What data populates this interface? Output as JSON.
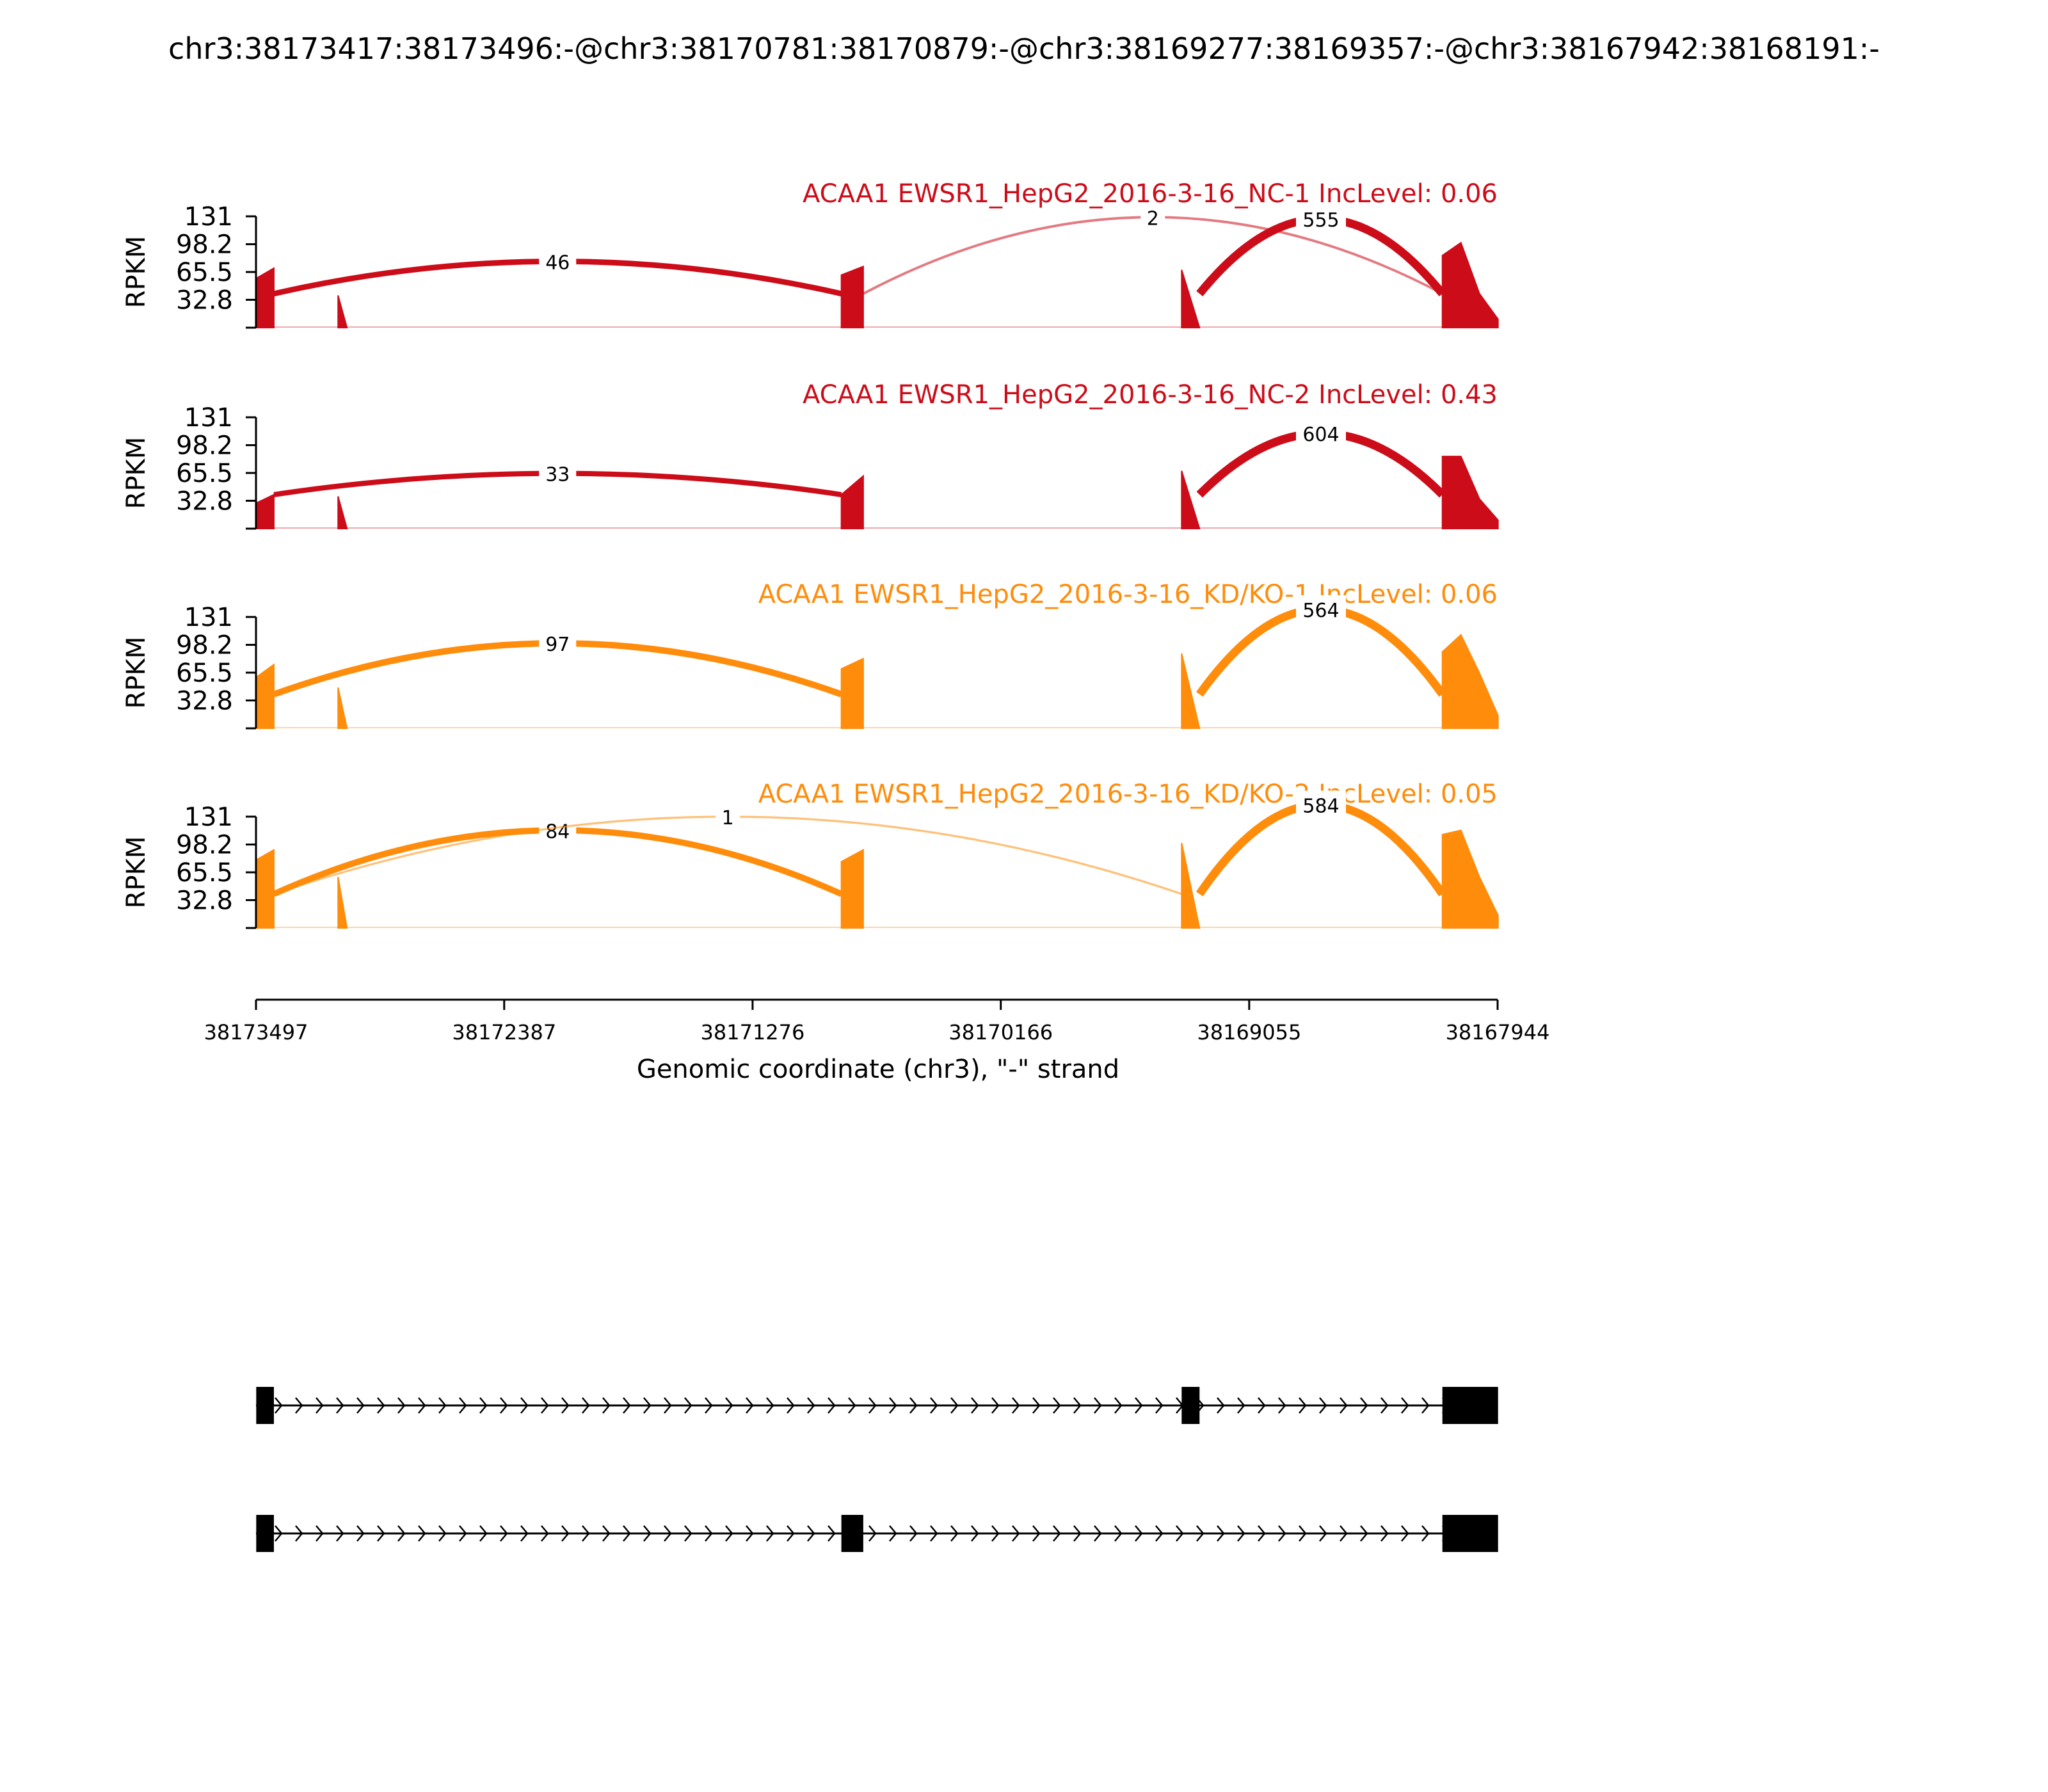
{
  "title": "chr3:38173417:38173496:-@chr3:38170781:38170879:-@chr3:38169277:38169357:-@chr3:38167942:38168191:-",
  "xlabel": "Genomic coordinate (chr3), \"-\" strand",
  "ylabel": "RPKM",
  "colors": {
    "nc": "#cc0c19",
    "kd": "#ff8c0a",
    "axis": "#000000"
  },
  "chart_data": {
    "type": "area",
    "xlim": [
      38173497,
      38167944
    ],
    "ylim": [
      0,
      131
    ],
    "x_ticks": [
      38173497,
      38172387,
      38171276,
      38170166,
      38169055,
      38167944
    ],
    "x_tick_labels": [
      "38173497",
      "38172387",
      "38171276",
      "38170166",
      "38169055",
      "38167944"
    ],
    "y_ticks": [
      32.8,
      65.5,
      98.2,
      131
    ],
    "y_tick_labels": [
      "32.8",
      "65.5",
      "98.2",
      "131"
    ],
    "exons": [
      {
        "start": 38173496,
        "end": 38173417
      },
      {
        "start": 38173130,
        "end": 38173090
      },
      {
        "start": 38170879,
        "end": 38170781
      },
      {
        "start": 38169357,
        "end": 38169277
      },
      {
        "start": 38168191,
        "end": 38167942
      }
    ],
    "series": [
      {
        "name": "ACAA1 EWSR1_HepG2_2016-3-16_NC-1 IncLevel: 0.06",
        "group": "nc",
        "coverage": [
          [
            58,
            70
          ],
          [
            38,
            0
          ],
          [
            62,
            72
          ],
          [
            68,
            0
          ],
          [
            85,
            100,
            40,
            10
          ]
        ],
        "junctions": [
          {
            "from": 38173417,
            "to": 38170879,
            "count": "46",
            "peak": 78
          },
          {
            "from": 38170781,
            "to": 38168191,
            "count": "2",
            "peak": 130
          },
          {
            "from": 38169277,
            "to": 38168191,
            "count": "555",
            "peak": 128
          }
        ]
      },
      {
        "name": "ACAA1 EWSR1_HepG2_2016-3-16_NC-2 IncLevel: 0.43",
        "group": "nc",
        "coverage": [
          [
            30,
            40
          ],
          [
            38,
            0
          ],
          [
            40,
            62
          ],
          [
            68,
            0
          ],
          [
            85,
            85,
            35,
            10
          ]
        ],
        "junctions": [
          {
            "from": 38173417,
            "to": 38170879,
            "count": "33",
            "peak": 65
          },
          {
            "from": 38169277,
            "to": 38168191,
            "count": "604",
            "peak": 112
          }
        ]
      },
      {
        "name": "ACAA1 EWSR1_HepG2_2016-3-16_KD/KO-1 IncLevel: 0.06",
        "group": "kd",
        "coverage": [
          [
            60,
            75
          ],
          [
            48,
            0
          ],
          [
            70,
            82
          ],
          [
            88,
            0
          ],
          [
            90,
            110,
            65,
            15
          ]
        ],
        "junctions": [
          {
            "from": 38173417,
            "to": 38170879,
            "count": "97",
            "peak": 100
          },
          {
            "from": 38169277,
            "to": 38168191,
            "count": "564",
            "peak": 140
          }
        ]
      },
      {
        "name": "ACAA1 EWSR1_HepG2_2016-3-16_KD/KO-2 IncLevel: 0.05",
        "group": "kd",
        "coverage": [
          [
            80,
            92
          ],
          [
            60,
            0
          ],
          [
            78,
            92
          ],
          [
            100,
            0
          ],
          [
            110,
            115,
            60,
            15
          ]
        ],
        "junctions": [
          {
            "from": 38173417,
            "to": 38170879,
            "count": "84",
            "peak": 115
          },
          {
            "from": 38173417,
            "to": 38169357,
            "count": "1",
            "peak": 131
          },
          {
            "from": 38169277,
            "to": 38168191,
            "count": "584",
            "peak": 145
          }
        ]
      }
    ],
    "transcripts": [
      {
        "exons": [
          [
            38173496,
            38173417
          ],
          [
            38169357,
            38169277
          ],
          [
            38168191,
            38167942
          ]
        ]
      },
      {
        "exons": [
          [
            38173496,
            38173417
          ],
          [
            38170879,
            38170781
          ],
          [
            38168191,
            38167942
          ]
        ]
      }
    ]
  }
}
